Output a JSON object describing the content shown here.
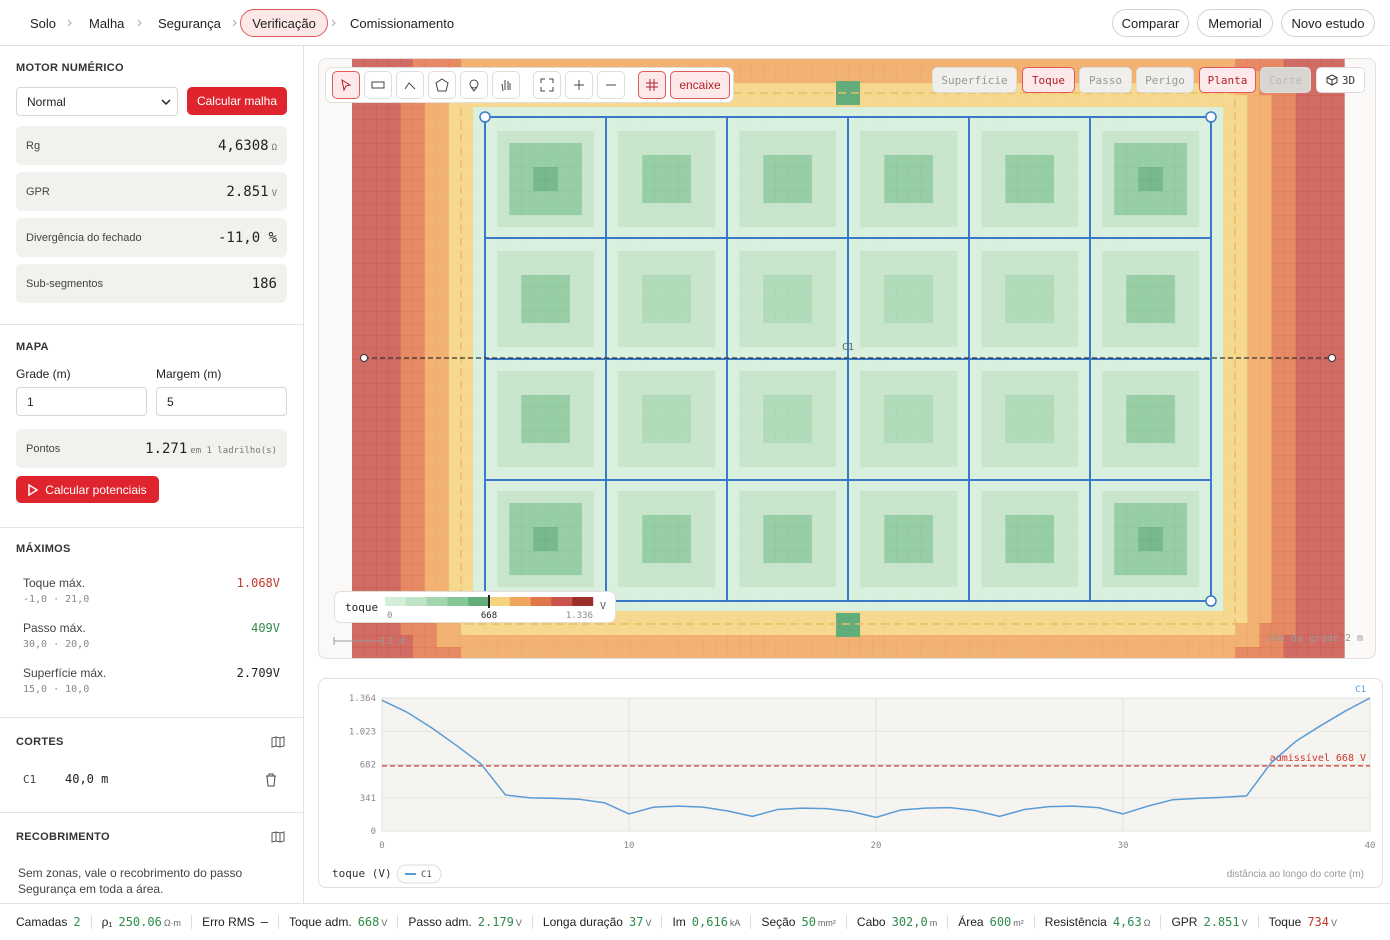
{
  "nav": {
    "steps": [
      "Solo",
      "Malha",
      "Segurança",
      "Verificação",
      "Comissionamento"
    ],
    "actions": [
      "Comparar",
      "Memorial",
      "Novo estudo"
    ]
  },
  "sidebar": {
    "motor": {
      "title": "MOTOR NUMÉRICO",
      "mode": "Normal",
      "button": "Calcular malha",
      "metrics": [
        {
          "label": "Rg",
          "value": "4,6308",
          "unit": "Ω"
        },
        {
          "label": "GPR",
          "value": "2.851",
          "unit": "V"
        },
        {
          "label": "Divergência do fechado",
          "value": "-11,0 %"
        },
        {
          "label": "Sub-segmentos",
          "value": "186"
        }
      ]
    },
    "mapa": {
      "title": "MAPA",
      "grid_label": "Grade (m)",
      "grid_value": "1",
      "margin_label": "Margem (m)",
      "margin_value": "5",
      "points_label": "Pontos",
      "points_value": "1.271",
      "points_note": "em 1 ladrilho(s)",
      "button": "Calcular potenciais"
    },
    "maximos": {
      "title": "MÁXIMOS",
      "items": [
        {
          "label": "Toque máx.",
          "position": "-1,0 · 21,0",
          "value": "1.068V",
          "color": "#c0392b"
        },
        {
          "label": "Passo máx.",
          "position": "30,0 · 20,0",
          "value": "409V",
          "color": "#2e8b4a"
        },
        {
          "label": "Superfície máx.",
          "position": "15,0 · 10,0",
          "value": "2.709V",
          "color": "#222222"
        }
      ]
    },
    "cortes": {
      "title": "CORTES",
      "items": [
        {
          "name": "C1",
          "length": "40,0 m"
        }
      ]
    },
    "recobrimento": {
      "title": "RECOBRIMENTO",
      "text": "Sem zonas, vale o recobrimento do passo Segurança em toda a área."
    }
  },
  "map": {
    "snap": "encaixe",
    "layers": [
      "Superfície",
      "Toque",
      "Passo",
      "Perigo",
      "Planta",
      "Corte",
      "3D"
    ],
    "cut_label": "C1",
    "legend": {
      "title": "toque",
      "ticks": [
        "0",
        "668",
        "1.336"
      ],
      "unit": "V",
      "colors": [
        "#d4eed9",
        "#bfe3c6",
        "#a3d6ae",
        "#86c798",
        "#62ad7a",
        "#f5d27e",
        "#f0a65c",
        "#e0774a",
        "#c9534a",
        "#9c2f2c"
      ]
    },
    "scale": "2 m",
    "grid_note": "vão da grade 2 m"
  },
  "chart_data": {
    "type": "line",
    "x": [
      0,
      1,
      2,
      3,
      4,
      5,
      6,
      7,
      8,
      9,
      10,
      11,
      12,
      13,
      14,
      15,
      16,
      17,
      18,
      19,
      20,
      21,
      22,
      23,
      24,
      25,
      26,
      27,
      28,
      29,
      30,
      31,
      32,
      33,
      34,
      35,
      36,
      37,
      38,
      39,
      40
    ],
    "series": [
      {
        "name": "C1",
        "color": "#5b9bd5",
        "values": [
          1340,
          1220,
          1060,
          880,
          690,
          370,
          340,
          335,
          325,
          290,
          175,
          245,
          255,
          245,
          205,
          150,
          220,
          235,
          230,
          200,
          140,
          215,
          235,
          240,
          210,
          150,
          220,
          250,
          255,
          240,
          175,
          255,
          320,
          335,
          345,
          360,
          700,
          920,
          1080,
          1230,
          1364
        ]
      }
    ],
    "xlim": [
      0,
      40
    ],
    "ylim": [
      0,
      1364
    ],
    "xticks": [
      0,
      10,
      20,
      30,
      40
    ],
    "yticks": [
      0,
      341,
      682,
      {
        "value": 1023,
        "label": "1.023"
      },
      {
        "value": 1364,
        "label": "1.364"
      }
    ],
    "ylabel": "toque (V)",
    "xlabel": "distância ao longo do corte (m)",
    "threshold": {
      "value": 668,
      "label": "admissível 668 V",
      "color": "#d0342c"
    },
    "grid": true
  },
  "status": [
    {
      "label": "Camadas",
      "value": "2"
    },
    {
      "label": "ρ₁",
      "value": "250.06",
      "unit": "Ω·m"
    },
    {
      "label": "Erro RMS",
      "value": "—",
      "color": "#222222"
    },
    {
      "label": "Toque adm.",
      "value": "668",
      "unit": "V"
    },
    {
      "label": "Passo adm.",
      "value": "2.179",
      "unit": "V"
    },
    {
      "label": "Longa duração",
      "value": "37",
      "unit": "V"
    },
    {
      "label": "Im",
      "value": "0,616",
      "unit": "kA"
    },
    {
      "label": "Seção",
      "value": "50",
      "unit": "mm²"
    },
    {
      "label": "Cabo",
      "value": "302,0",
      "unit": "m"
    },
    {
      "label": "Área",
      "value": "600",
      "unit": "m²"
    },
    {
      "label": "Resistência",
      "value": "4,63",
      "unit": "Ω"
    },
    {
      "label": "GPR",
      "value": "2.851",
      "unit": "V"
    },
    {
      "label": "Toque",
      "value": "734",
      "unit": "V",
      "color": "#c0392b"
    }
  ]
}
